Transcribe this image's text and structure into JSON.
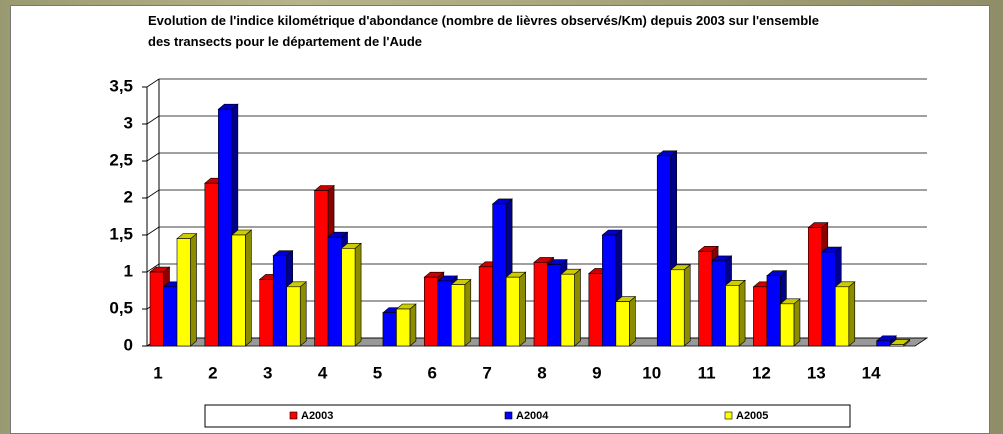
{
  "chart_data": {
    "type": "bar3d",
    "title": "Evolution de l'indice kilométrique d'abondance (nombre de lièvres observés/Km) depuis 2003 sur l'ensemble des transects pour le département de l'Aude",
    "categories": [
      "1",
      "2",
      "3",
      "4",
      "5",
      "6",
      "7",
      "8",
      "9",
      "10",
      "11",
      "12",
      "13",
      "14"
    ],
    "series": [
      {
        "name": "A2003",
        "color": "#ff0000",
        "values": [
          1.0,
          2.2,
          0.9,
          2.1,
          null,
          0.93,
          1.07,
          1.13,
          0.98,
          null,
          1.28,
          0.8,
          1.6,
          null
        ]
      },
      {
        "name": "A2004",
        "color": "#0000ff",
        "values": [
          0.8,
          3.2,
          1.22,
          1.47,
          0.45,
          0.88,
          1.92,
          1.1,
          1.5,
          2.57,
          1.15,
          0.95,
          1.27,
          0.07
        ]
      },
      {
        "name": "A2005",
        "color": "#ffff00",
        "values": [
          1.45,
          1.5,
          0.8,
          1.32,
          0.5,
          0.83,
          0.93,
          0.97,
          0.6,
          1.03,
          0.82,
          0.57,
          0.8,
          0.02
        ]
      }
    ],
    "ylim": [
      0,
      3.5
    ],
    "yticks": [
      0,
      {
        "value": 0.5,
        "label": "0,5"
      },
      1,
      {
        "value": 1.5,
        "label": "1,5"
      },
      2,
      {
        "value": 2.5,
        "label": "2,5"
      },
      3,
      {
        "value": 3.5,
        "label": "3,5"
      }
    ],
    "grid": true,
    "legend": "bottom"
  }
}
